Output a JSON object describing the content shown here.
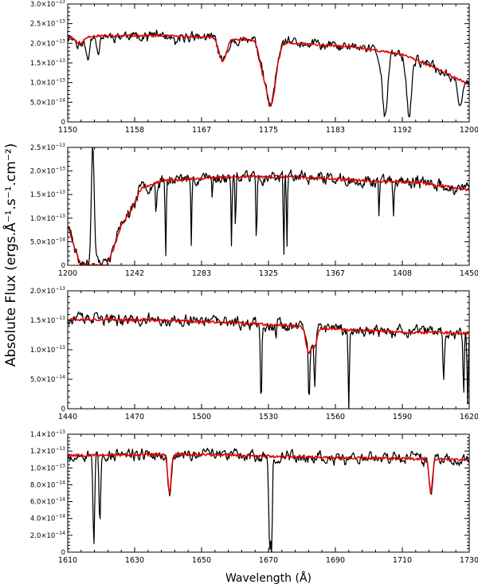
{
  "y_axis_title": "Absolute Flux (ergs.Å⁻¹.s⁻¹.cm⁻²)",
  "x_axis_title": "Wavelength (Å)",
  "colors": {
    "observed": "#000000",
    "model": "#e00000"
  },
  "chart_data": [
    {
      "type": "line",
      "xlim": [
        1150,
        1200
      ],
      "ylim": [
        0,
        3e-13
      ],
      "xticks": [
        {
          "v": 1150,
          "label": "1150"
        },
        {
          "v": 1158.33,
          "label": "1158"
        },
        {
          "v": 1166.67,
          "label": "1167"
        },
        {
          "v": 1175,
          "label": "1175"
        },
        {
          "v": 1183.33,
          "label": "1183"
        },
        {
          "v": 1191.67,
          "label": "1192"
        },
        {
          "v": 1200,
          "label": "1200"
        }
      ],
      "yticks": [
        {
          "v": 0,
          "m": "0",
          "e": ""
        },
        {
          "v": 5e-14,
          "m": "5.0×10",
          "e": "−14"
        },
        {
          "v": 1e-13,
          "m": "1.0×10",
          "e": "−13"
        },
        {
          "v": 1.5e-13,
          "m": "1.5×10",
          "e": "−13"
        },
        {
          "v": 2e-13,
          "m": "2.0×10",
          "e": "−13"
        },
        {
          "v": 2.5e-13,
          "m": "2.5×10",
          "e": "−13"
        },
        {
          "v": 3e-13,
          "m": "3.0×10",
          "e": "−13"
        }
      ],
      "model_continuum": [
        [
          1150,
          2.18e-13
        ],
        [
          1160,
          2.2e-13
        ],
        [
          1168,
          2.15e-13
        ],
        [
          1178,
          2e-13
        ],
        [
          1186,
          1.9e-13
        ],
        [
          1192,
          1.7e-13
        ],
        [
          1196,
          1.35e-13
        ],
        [
          1200,
          9.5e-14
        ]
      ],
      "model_features": [
        [
          1151.5,
          -2e-14,
          0.5
        ],
        [
          1169.3,
          -6e-14,
          0.45
        ],
        [
          1175.3,
          -1.6e-13,
          0.6
        ],
        [
          1174.2,
          -5e-14,
          0.4
        ]
      ],
      "obs_extra": [
        [
          1152.5,
          -5e-14,
          0.25
        ],
        [
          1153.8,
          -4e-14,
          0.2
        ],
        [
          1163.5,
          -2e-14,
          0.3
        ],
        [
          1189.5,
          -1.6e-13,
          0.35
        ],
        [
          1192.5,
          -1.5e-13,
          0.3
        ],
        [
          1198.8,
          -6e-14,
          0.25
        ]
      ],
      "noise": 9e-15,
      "seed": 11
    },
    {
      "type": "line",
      "xlim": [
        1200,
        1450
      ],
      "ylim": [
        0,
        2.5e-13
      ],
      "xticks": [
        {
          "v": 1200,
          "label": "1200"
        },
        {
          "v": 1241.67,
          "label": "1242"
        },
        {
          "v": 1283.33,
          "label": "1283"
        },
        {
          "v": 1325,
          "label": "1325"
        },
        {
          "v": 1366.67,
          "label": "1367"
        },
        {
          "v": 1408.33,
          "label": "1408"
        },
        {
          "v": 1450,
          "label": "1450"
        }
      ],
      "yticks": [
        {
          "v": 0,
          "m": "0",
          "e": ""
        },
        {
          "v": 5e-14,
          "m": "5.0×10",
          "e": "−14"
        },
        {
          "v": 1e-13,
          "m": "1.0×10",
          "e": "−13"
        },
        {
          "v": 1.5e-13,
          "m": "1.5×10",
          "e": "−13"
        },
        {
          "v": 2e-13,
          "m": "2.0×10",
          "e": "−13"
        },
        {
          "v": 2.5e-13,
          "m": "2.5×10",
          "e": "−13"
        }
      ],
      "model_continuum": [
        [
          1200,
          8.5e-14
        ],
        [
          1205,
          3e-14
        ],
        [
          1208,
          2e-15
        ],
        [
          1224,
          0.0
        ],
        [
          1228,
          3e-14
        ],
        [
          1234,
          9e-14
        ],
        [
          1240,
          1.2e-13
        ],
        [
          1246,
          1.65e-13
        ],
        [
          1260,
          1.8e-13
        ],
        [
          1300,
          1.88e-13
        ],
        [
          1340,
          1.88e-13
        ],
        [
          1380,
          1.8e-13
        ],
        [
          1420,
          1.75e-13
        ],
        [
          1450,
          1.6e-13
        ]
      ],
      "model_features": [],
      "obs_extra": [
        [
          1215.6,
          2.6e-13,
          0.9
        ],
        [
          1261,
          -1.6e-13,
          0.3
        ],
        [
          1277,
          -1.5e-13,
          0.3
        ],
        [
          1302,
          -1.5e-13,
          0.3
        ],
        [
          1304.5,
          -1.2e-13,
          0.3
        ],
        [
          1317.5,
          -1.4e-13,
          0.3
        ],
        [
          1334.5,
          -1.8e-13,
          0.3
        ],
        [
          1336.5,
          -1.5e-13,
          0.3
        ],
        [
          1393.8,
          -8e-14,
          0.3
        ],
        [
          1402.8,
          -7e-14,
          0.3
        ],
        [
          1255,
          -6e-14,
          0.3
        ],
        [
          1290,
          -5e-14,
          0.3
        ]
      ],
      "noise": 9e-15,
      "seed": 23
    },
    {
      "type": "line",
      "xlim": [
        1440,
        1620
      ],
      "ylim": [
        0,
        2e-13
      ],
      "xticks": [
        {
          "v": 1440,
          "label": "1440"
        },
        {
          "v": 1470,
          "label": "1470"
        },
        {
          "v": 1500,
          "label": "1500"
        },
        {
          "v": 1530,
          "label": "1530"
        },
        {
          "v": 1560,
          "label": "1560"
        },
        {
          "v": 1590,
          "label": "1590"
        },
        {
          "v": 1620,
          "label": "1620"
        }
      ],
      "yticks": [
        {
          "v": 0,
          "m": "0",
          "e": ""
        },
        {
          "v": 5e-14,
          "m": "5.0×10",
          "e": "−14"
        },
        {
          "v": 1e-13,
          "m": "1.0×10",
          "e": "−13"
        },
        {
          "v": 1.5e-13,
          "m": "1.5×10",
          "e": "−13"
        },
        {
          "v": 2e-13,
          "m": "2.0×10",
          "e": "−13"
        }
      ],
      "model_continuum": [
        [
          1440,
          1.52e-13
        ],
        [
          1480,
          1.5e-13
        ],
        [
          1520,
          1.45e-13
        ],
        [
          1545,
          1.4e-13
        ],
        [
          1560,
          1.35e-13
        ],
        [
          1590,
          1.3e-13
        ],
        [
          1620,
          1.28e-13
        ]
      ],
      "model_features": [
        [
          1548,
          -4.5e-14,
          1.2
        ],
        [
          1550.8,
          -3e-14,
          1.0
        ]
      ],
      "obs_extra": [
        [
          1526.7,
          -1.3e-13,
          0.3
        ],
        [
          1533.4,
          -3e-14,
          0.3
        ],
        [
          1548.2,
          -9e-14,
          0.3
        ],
        [
          1550.8,
          -7e-14,
          0.3
        ],
        [
          1566,
          -1.35e-13,
          0.25
        ],
        [
          1608.5,
          -8e-14,
          0.3
        ],
        [
          1617.5,
          -1e-13,
          0.25
        ],
        [
          1619.3,
          -1.2e-13,
          0.25
        ]
      ],
      "noise": 7e-15,
      "seed": 37
    },
    {
      "type": "line",
      "xlim": [
        1610,
        1730
      ],
      "ylim": [
        0,
        1.4e-13
      ],
      "xticks": [
        {
          "v": 1610,
          "label": "1610"
        },
        {
          "v": 1630,
          "label": "1630"
        },
        {
          "v": 1650,
          "label": "1650"
        },
        {
          "v": 1670,
          "label": "1670"
        },
        {
          "v": 1690,
          "label": "1690"
        },
        {
          "v": 1710,
          "label": "1710"
        },
        {
          "v": 1730,
          "label": "1730"
        }
      ],
      "yticks": [
        {
          "v": 0,
          "m": "0",
          "e": ""
        },
        {
          "v": 2e-14,
          "m": "2.0×10",
          "e": "−14"
        },
        {
          "v": 4e-14,
          "m": "4.0×10",
          "e": "−14"
        },
        {
          "v": 6e-14,
          "m": "6.0×10",
          "e": "−14"
        },
        {
          "v": 8e-14,
          "m": "8.0×10",
          "e": "−14"
        },
        {
          "v": 1e-13,
          "m": "1.0×10",
          "e": "−13"
        },
        {
          "v": 1.2e-13,
          "m": "1.2×10",
          "e": "−13"
        },
        {
          "v": 1.4e-13,
          "m": "1.4×10",
          "e": "−13"
        }
      ],
      "model_continuum": [
        [
          1610,
          1.15e-13
        ],
        [
          1650,
          1.16e-13
        ],
        [
          1690,
          1.12e-13
        ],
        [
          1730,
          1.1e-13
        ]
      ],
      "model_features": [
        [
          1640.4,
          -4.5e-14,
          0.5
        ],
        [
          1718.5,
          -4e-14,
          0.5
        ]
      ],
      "obs_extra": [
        [
          1617.8,
          -1.1e-13,
          0.25
        ],
        [
          1619.6,
          -8.5e-14,
          0.25
        ],
        [
          1670.4,
          -1.05e-13,
          0.3
        ],
        [
          1671.0,
          -9.5e-14,
          0.2
        ]
      ],
      "noise": 5e-15,
      "seed": 53
    }
  ]
}
